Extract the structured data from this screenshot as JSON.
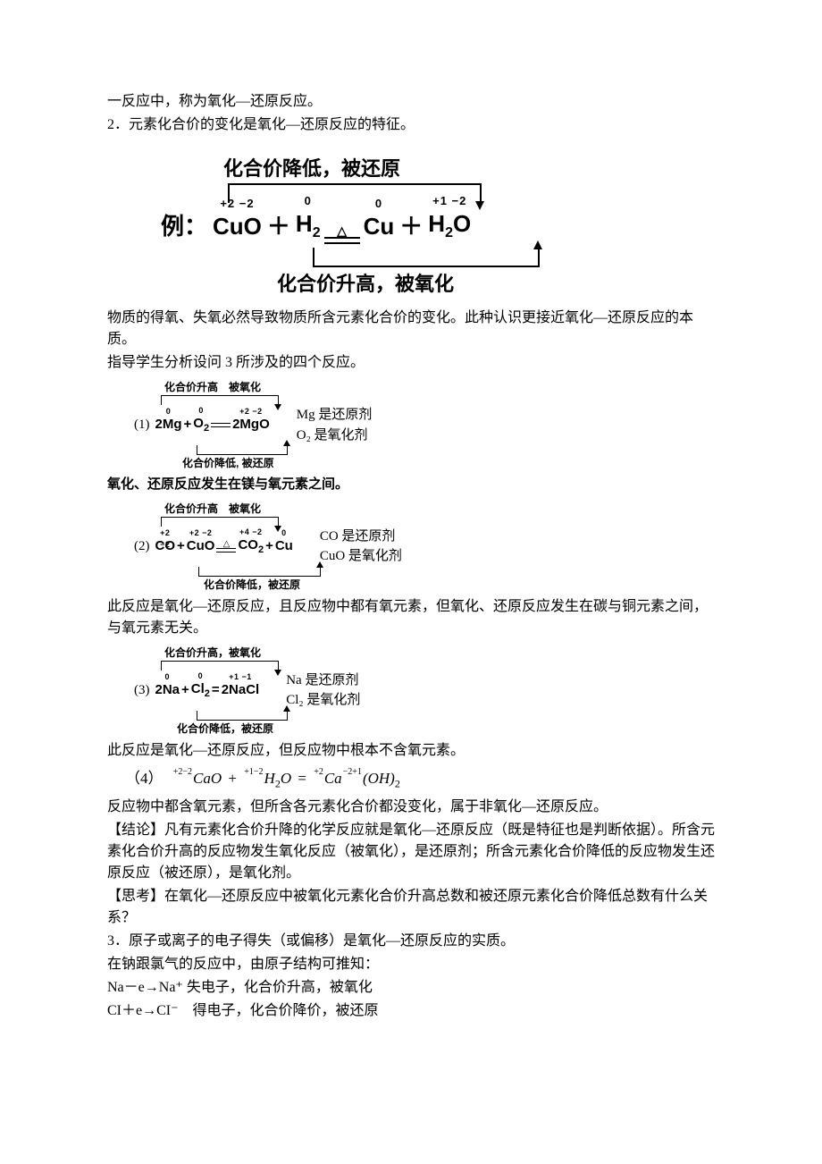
{
  "p1": "一反应中，称为氧化—还原反应。",
  "p2": "2．元素化合价的变化是氧化—还原反应的特征。",
  "d1": {
    "top_label": "化合价降低，被还原",
    "prefix": "例：",
    "t1_sup": "+2 −2",
    "t1": "CuO",
    "plus": "＋",
    "t2_sup": "0",
    "t2": "H",
    "t2_sub": "2",
    "tri": "△",
    "t3_sup": "0",
    "t3": "Cu",
    "t4_sup": "+1 −2",
    "t4": "H",
    "t4_sub": "2",
    "t4b": "O",
    "bot_label": "化合价升高，被氧化"
  },
  "p3": "物质的得氧、失氧必然导致物质所含元素化合价的变化。此种认识更接近氧化—还原反应的本质。",
  "p4": "指导学生分析设问 3 所涉及的四个反应。",
  "sd1": {
    "top": "化合价升高　被氧化",
    "idx": "(1)",
    "a_sup": "0",
    "a": "2Mg",
    "b_sup": "0",
    "b": "O",
    "b_sub": "2",
    "c_sup": "+2 −2",
    "c": "2MgO",
    "side1": "Mg 是还原剂",
    "side2": "O₂ 是氧化剂",
    "bot": "化合价降低, 被还原",
    "brkt_w": 130,
    "brkb_w": 100,
    "brkb_ml": 70,
    "bot_ml": 54
  },
  "bold1": "氧化、还原反应发生在镁与氧元素之间。",
  "sd2": {
    "top": "化合价升高　被氧化",
    "idx": "(2)",
    "a_sup": "+2 −2",
    "a": "CO",
    "b_sup": "+2 −2",
    "b": "CuO",
    "tri": "△",
    "c_sup": "+4 −2",
    "c": "CO",
    "c_sub": "2",
    "d_sup": "0",
    "d": "Cu",
    "side1": "CO 是还原剂",
    "side2": "CuO 是氧化剂",
    "bot": "化合价降低，被还原",
    "brkt_w": 130,
    "brkb_w": 135,
    "brkb_ml": 72,
    "bot_ml": 78
  },
  "p5": "此反应是氧化—还原反应，且反应物中都有氧元素，但氧化、还原反应发生在碳与铜元素之间，与氧元素无关。",
  "sd3": {
    "top": "化合价升高，被氧化",
    "idx": "(3)",
    "a_sup": "0",
    "a": "2Na",
    "b_sup": "0",
    "b": "Cl",
    "b_sub": "2",
    "eq": "=",
    "c_sup": "+1 −1",
    "c": "2NaCl",
    "side1": "Na 是还原剂",
    "side2": "Cl₂ 是氧化剂",
    "bot": "化合价降低，被还原",
    "brkt_w": 130,
    "brkb_w": 100,
    "brkb_ml": 70,
    "bot_ml": 48
  },
  "p6": "此反应是氧化—还原反应，但反应物中根本不含氧元素。",
  "eq4": {
    "idx": "（4）",
    "a_sup": "+2−2",
    "a": "CaO",
    "b_sup": "+1−2",
    "b1": "H",
    "b_sub": "2",
    "b2": "O",
    "eq": "=",
    "c_sup": "+2",
    "c1": "Ca",
    "d_sup": "−2+1",
    "d1": "(OH)",
    "d_sub": "2"
  },
  "p7": "反应物中都含氧元素，但所含各元素化合价都没变化，属于非氧化—还原反应。",
  "p8": "【结论】凡有元素化合价升降的化学反应就是氧化—还原反应（既是特征也是判断依据）。所含元素化合价升高的反应物发生氧化反应（被氧化），是还原剂；所含元素化合价降低的反应物发生还原反应（被还原），是氧化剂。",
  "p9": "【思考】在氧化—还原反应中被氧化元素化合价升高总数和被还原元素化合价降低总数有什么关系？",
  "p10": "3．原子或离子的电子得失（或偏移）是氧化—还原反应的实质。",
  "p11": "在钠跟氯气的反应中，由原子结构可推知：",
  "p12": "Na－e→Na⁺ 失电子，化合价升高，被氧化",
  "p13": "CI＋e→CI⁻　得电子，化合价降价，被还原"
}
